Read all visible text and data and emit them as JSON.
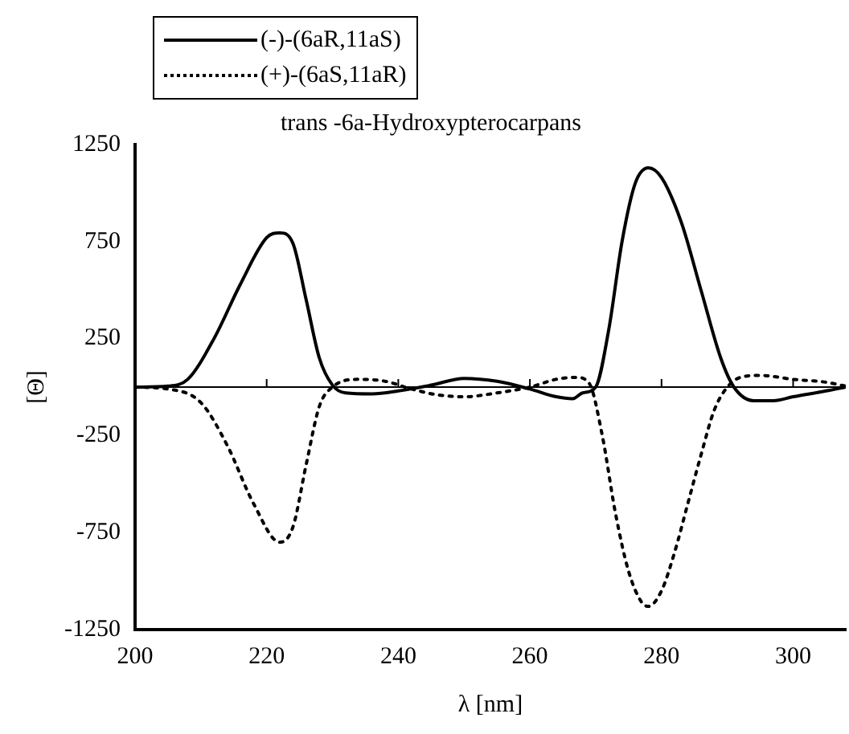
{
  "chart_data": {
    "type": "line",
    "title": "trans -6a-Hydroxypterocarpans",
    "xlabel": "λ [nm]",
    "ylabel": "[Θ]",
    "xlim": [
      200,
      308
    ],
    "xticks": [
      200,
      220,
      240,
      260,
      280,
      300
    ],
    "ylim": [
      -1250,
      1250
    ],
    "yticks": [
      -1250,
      -750,
      -250,
      250,
      750,
      1250
    ],
    "grid": false,
    "legend": "top left",
    "marker": "none",
    "series": [
      {
        "name": "(-)-(6aR,11aS)",
        "color": "#000000",
        "line_style": "solid",
        "x": [
          200,
          205,
          208,
          212,
          216,
          220,
          222,
          224,
          226,
          228,
          230,
          232,
          236,
          240,
          245,
          250,
          255,
          260,
          264,
          266.5,
          268,
          270,
          272,
          274,
          276,
          278,
          280,
          283,
          286,
          289,
          291,
          294,
          297,
          300,
          305,
          308
        ],
        "values": [
          0,
          5,
          40,
          250,
          530,
          770,
          795,
          740,
          450,
          150,
          10,
          -30,
          -35,
          -20,
          10,
          45,
          30,
          -10,
          -50,
          -60,
          -30,
          0,
          300,
          750,
          1050,
          1130,
          1080,
          850,
          500,
          150,
          0,
          -70,
          -70,
          -50,
          -20,
          0
        ]
      },
      {
        "name": "(+)-(6aS,11aR)",
        "color": "#000000",
        "line_style": "dotted",
        "x": [
          200,
          205,
          210,
          214,
          218,
          222,
          224,
          226,
          228,
          230,
          234,
          238,
          242,
          246,
          250,
          255,
          260,
          264,
          267,
          269,
          271,
          273,
          275,
          277,
          278,
          280,
          282,
          284,
          286,
          288,
          290,
          292,
          295,
          300,
          305,
          308
        ],
        "values": [
          0,
          -10,
          -80,
          -300,
          -600,
          -800,
          -720,
          -400,
          -100,
          0,
          40,
          30,
          -10,
          -40,
          -50,
          -30,
          0,
          40,
          50,
          20,
          -250,
          -650,
          -950,
          -1110,
          -1130,
          -1050,
          -850,
          -600,
          -350,
          -120,
          0,
          50,
          60,
          40,
          25,
          5
        ]
      }
    ]
  }
}
